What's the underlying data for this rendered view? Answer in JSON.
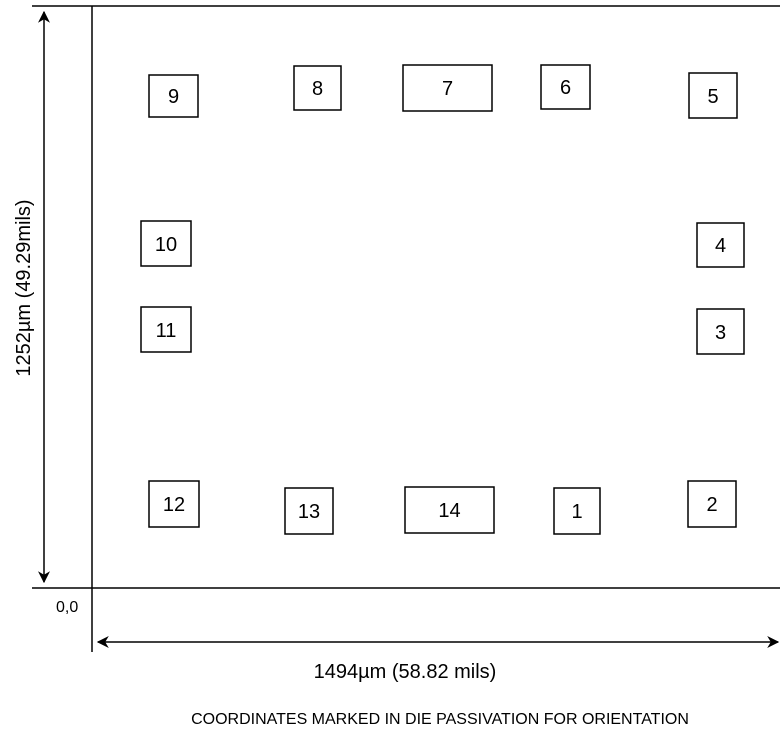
{
  "diagram": {
    "origin_label": "0,0",
    "width_label": "1494µm (58.82 mils)",
    "height_label": "1252µm (49.29mils)",
    "note": "COORDINATES MARKED IN DIE PASSIVATION FOR ORIENTATION",
    "pads": [
      {
        "label": "1"
      },
      {
        "label": "2"
      },
      {
        "label": "3"
      },
      {
        "label": "4"
      },
      {
        "label": "5"
      },
      {
        "label": "6"
      },
      {
        "label": "7"
      },
      {
        "label": "8"
      },
      {
        "label": "9"
      },
      {
        "label": "10"
      },
      {
        "label": "11"
      },
      {
        "label": "12"
      },
      {
        "label": "13"
      },
      {
        "label": "14"
      }
    ]
  }
}
